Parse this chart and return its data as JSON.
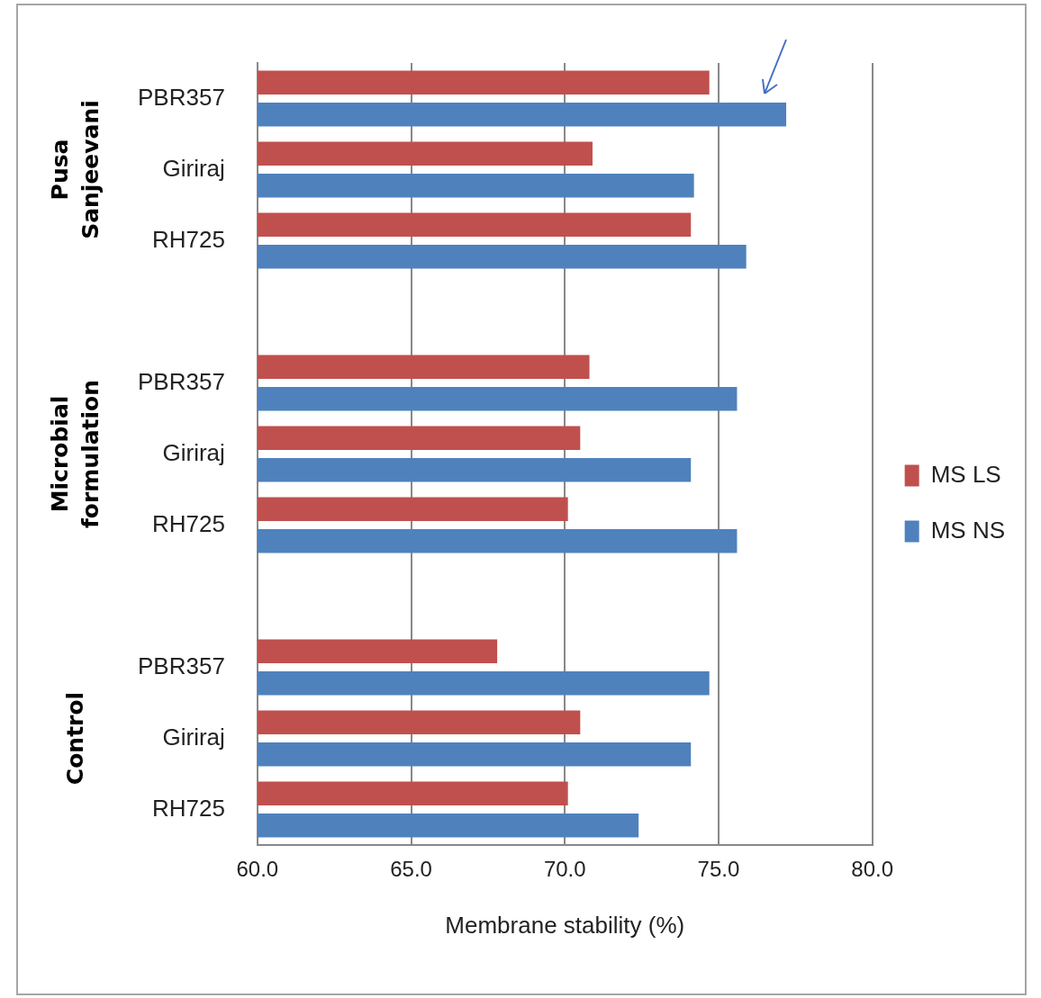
{
  "chart_data": {
    "type": "bar",
    "orientation": "horizontal",
    "xlabel": "Membrane stability (%)",
    "categories": [
      "PBR357",
      "Giriraj",
      "RH725",
      null,
      "PBR357",
      "Giriraj",
      "RH725",
      null,
      "PBR357",
      "Giriraj",
      "RH725"
    ],
    "series": [
      {
        "name": "MS LS",
        "color": "#c0504d",
        "values": [
          74.7,
          70.9,
          74.1,
          null,
          70.8,
          70.5,
          70.1,
          null,
          67.8,
          70.5,
          70.1
        ]
      },
      {
        "name": "MS NS",
        "color": "#4f81bd",
        "values": [
          77.2,
          74.2,
          75.9,
          null,
          75.6,
          74.1,
          75.6,
          null,
          74.7,
          74.1,
          72.4
        ]
      }
    ],
    "xlim": [
      60,
      80
    ],
    "xticks": [
      {
        "value": 60,
        "label": "60.0"
      },
      {
        "value": 65,
        "label": "65.0"
      },
      {
        "value": 70,
        "label": "70.0"
      },
      {
        "value": 75,
        "label": "75.0"
      },
      {
        "value": 80,
        "label": "80.0"
      }
    ],
    "grid": "x",
    "legend": "right",
    "annotations": [
      "Pusa Sanjeevani",
      "Microbial formulation",
      "Control"
    ]
  }
}
